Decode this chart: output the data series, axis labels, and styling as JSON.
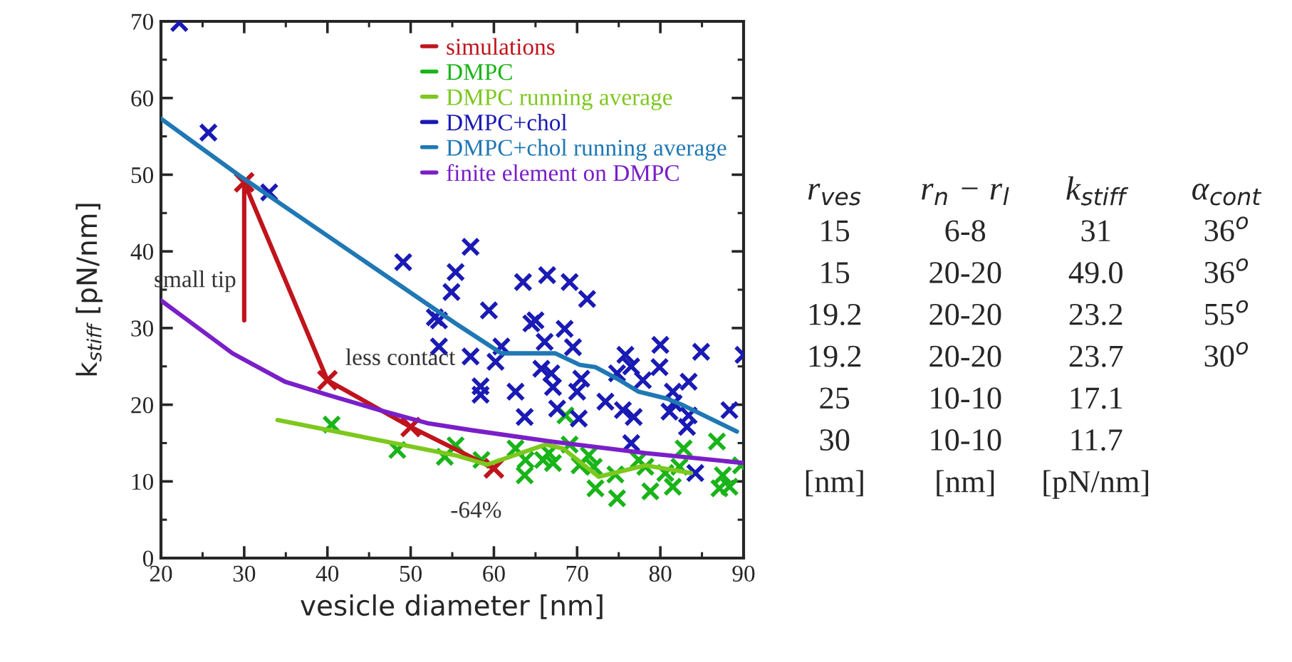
{
  "chart_data": [
    {
      "type": "scatter",
      "xlabel": "vesicle diameter [nm]",
      "ylabel": "k$_{stiff}$ [pN/nm]",
      "xlim": [
        20,
        90
      ],
      "xticks": [
        20,
        30,
        40,
        50,
        60,
        70,
        80,
        90
      ],
      "ylim": [
        0,
        70
      ],
      "yticks": [
        0,
        10,
        20,
        30,
        40,
        50,
        60,
        70
      ],
      "grid": false,
      "legend": "top right",
      "marker": "cross",
      "series": [
        {
          "name": "simulations",
          "type": "line",
          "color": "#c0141c",
          "marker": "cross",
          "x": [
            30,
            40,
            50,
            60
          ],
          "values": [
            49.0,
            23.2,
            17.1,
            11.7
          ]
        },
        {
          "type": "line",
          "color": "#c0141c",
          "marker": "none",
          "x": [
            30,
            30
          ],
          "values": [
            31,
            49.0
          ]
        },
        {
          "name": "DMPC",
          "type": "scatter",
          "color": "#19b419",
          "x": [
            40.5,
            48.4,
            54.1,
            55.4,
            58.5,
            62.6,
            63.8,
            63.7,
            65.9,
            67.1,
            66.6,
            68.6,
            69.1,
            70.3,
            71.4,
            72,
            72.2,
            74.8,
            74.6,
            77.4,
            78.2,
            78.8,
            80.6,
            81.5,
            82.8,
            82.3,
            86.8,
            87.5,
            88.3,
            87.1,
            89.7
          ],
          "values": [
            17.4,
            14.1,
            13.2,
            14.7,
            12.8,
            14.3,
            12.8,
            10.8,
            12.8,
            12.4,
            13.7,
            18.6,
            14.8,
            12.1,
            13.4,
            11.9,
            9.1,
            7.8,
            10.9,
            12.8,
            11.9,
            8.7,
            11.1,
            9.3,
            14.3,
            11.9,
            15.2,
            10.8,
            9.3,
            9.1,
            12.1
          ]
        },
        {
          "name": "DMPC running average",
          "type": "line",
          "color": "#7dc81e",
          "marker": "none",
          "x": [
            34,
            55.4,
            59.2,
            66.2,
            68.3,
            72.6,
            78.2,
            83.7
          ],
          "values": [
            18,
            13.4,
            12.2,
            14.8,
            14.3,
            10.6,
            12.1,
            11.1
          ]
        },
        {
          "name": "DMPC+chol",
          "type": "scatter",
          "color": "#1a1ab4",
          "x": [
            22.2,
            25.7,
            33,
            49.1,
            55.4,
            57.2,
            63.5,
            66.4,
            69.1,
            71.2,
            59.4,
            64.5,
            65,
            68.5,
            66.1,
            60.9,
            57.2,
            60.2,
            69.5,
            65.7,
            66.9,
            67.1,
            70.5,
            70,
            58.4,
            58.4,
            62.6,
            63.7,
            67.6,
            70.2,
            73.4,
            75.5,
            76.8,
            75.8,
            76.5,
            77.9,
            74.8,
            80,
            79.9,
            84.9,
            83.4,
            81.5,
            81.6,
            81.1,
            83.4,
            83.2,
            88.3,
            90,
            76.5,
            84.2,
            54.9,
            52.9,
            53.4,
            53.4
          ],
          "values": [
            69.8,
            55.5,
            47.7,
            38.6,
            37.3,
            40.6,
            36.0,
            36.9,
            36.0,
            33.8,
            32.3,
            30.6,
            31,
            29.9,
            28.2,
            27.6,
            26.3,
            25.6,
            27.5,
            24.7,
            24.1,
            22.3,
            23.4,
            21.7,
            22.4,
            21.3,
            21.7,
            18.4,
            19.5,
            18.2,
            20.4,
            19.3,
            18.4,
            26.5,
            25,
            23.2,
            24.1,
            27.8,
            24.9,
            26.9,
            23,
            21.7,
            20.2,
            19.1,
            18.6,
            17.1,
            19.3,
            26.5,
            15,
            11.1,
            34.7,
            31.4,
            31,
            27.6
          ]
        },
        {
          "name": "DMPC+chol running average",
          "type": "line",
          "color": "#1f78b4",
          "marker": "none",
          "x": [
            20,
            29.4,
            55.4,
            60.9,
            67.4,
            70.3,
            72.2,
            74.8,
            77.4,
            80.8,
            82.8,
            89.2
          ],
          "values": [
            57.3,
            49.9,
            30.6,
            26.7,
            26.7,
            25.2,
            24.9,
            23.4,
            21.7,
            20.8,
            19.9,
            16.5
          ]
        },
        {
          "name": "finite element on DMPC",
          "type": "line",
          "color": "#7a1fc8",
          "marker": "none",
          "x": [
            20,
            28.6,
            34.9,
            40,
            46.9,
            52,
            57.2,
            66.9,
            78.2,
            90
          ],
          "values": [
            33.6,
            26.7,
            23,
            21.3,
            19.1,
            17.6,
            16.7,
            15.2,
            13.7,
            12.4
          ]
        }
      ],
      "annotations": [
        {
          "text": "small tip",
          "x": 30,
          "y": 33
        },
        {
          "text": "less contact",
          "x": 41.2,
          "y": 24.9
        },
        {
          "text": "-64%",
          "x": 60,
          "y": 11.7
        }
      ]
    },
    {
      "type": "other",
      "categories": [
        "r$_{ves}$",
        "r$_{n}$ − r$_{l}$",
        "k$_{stiff}$",
        "α$_{cont}$"
      ],
      "cells": [
        [
          "15",
          "6-8",
          "31",
          "36$^{o}$"
        ],
        [
          "15",
          "20-20",
          "49.0",
          "36$^{o}$"
        ],
        [
          "19.2",
          "20-20",
          "23.2",
          "55$^{o}$"
        ],
        [
          "19.2",
          "20-20",
          "23.7",
          "30$^{o}$"
        ],
        [
          "25",
          "10-10",
          "17.1",
          null
        ],
        [
          "30",
          "10-10",
          "11.7",
          null
        ],
        [
          "[nm]",
          "[nm]",
          "[pN/nm]",
          null
        ]
      ]
    }
  ]
}
